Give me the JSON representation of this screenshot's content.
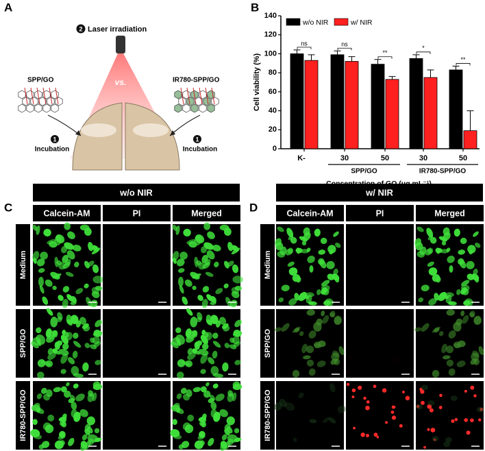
{
  "panel_labels": [
    "A",
    "B",
    "C",
    "D"
  ],
  "schematic": {
    "step2_number": "2",
    "step2_label": "Laser irradiation",
    "vs": "vs.",
    "left_label": "SPP/GO",
    "right_label": "IR780-SPP/GO",
    "incubation": [
      {
        "number": "1",
        "label": "Incubation"
      },
      {
        "number": "1",
        "label": "Incubation"
      }
    ]
  },
  "chart_data": {
    "type": "bar",
    "ylabel": "Cell viability (%)",
    "xlabel": "Concentration of GO (μg mL⁻¹)",
    "categories": [
      "K-",
      "30",
      "50",
      "30",
      "50"
    ],
    "groups": [
      "SPP/GO",
      "IR780-SPP/GO"
    ],
    "series": [
      {
        "name": "w/o NIR",
        "color": "#000000",
        "values": [
          100,
          99,
          89,
          95,
          83
        ],
        "errors": [
          4,
          4,
          5,
          4,
          4
        ]
      },
      {
        "name": "w/ NIR",
        "color": "#ff2020",
        "values": [
          93,
          92,
          73,
          75,
          19
        ],
        "errors": [
          6,
          5,
          3,
          8,
          21
        ]
      }
    ],
    "significance": [
      "ns",
      "ns",
      "**",
      "*",
      "**"
    ],
    "ylim": [
      0,
      140
    ],
    "yticks": [
      0,
      20,
      40,
      60,
      80,
      100,
      120,
      140
    ],
    "legend": "top-left"
  },
  "panels": [
    {
      "header": "w/o NIR",
      "columns": [
        "Calcein-AM",
        "PI",
        "Merged"
      ],
      "rows": [
        "Medium",
        "SPP/GO",
        "IR780-SPP/GO"
      ]
    },
    {
      "header": "w/ NIR",
      "columns": [
        "Calcein-AM",
        "PI",
        "Merged"
      ],
      "rows": [
        "Medium",
        "SPP/GO",
        "IR780-SPP/GO"
      ]
    }
  ]
}
